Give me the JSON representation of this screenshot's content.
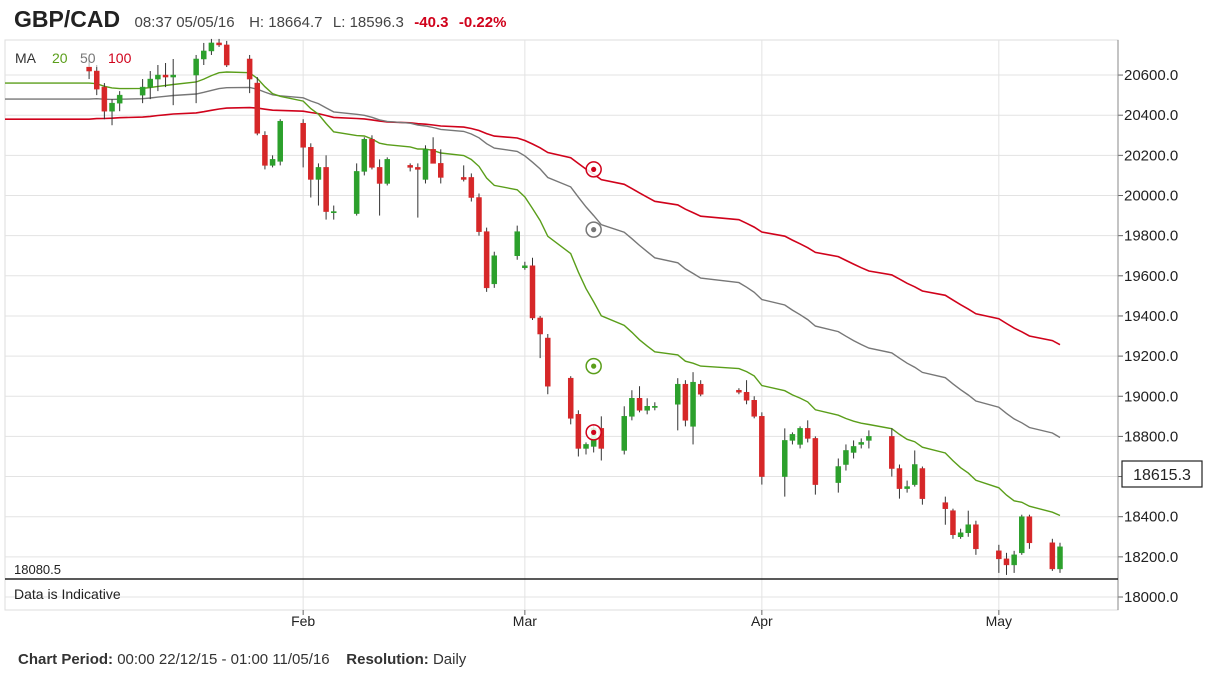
{
  "header": {
    "symbol": "GBP/CAD",
    "time": "08:37 05/05/16",
    "high": "H: 18664.7",
    "low": "L: 18596.3",
    "change": "-40.3",
    "change_pct": "-0.22%"
  },
  "legend": {
    "label": "MA",
    "ma20": "20",
    "ma50": "50",
    "ma100": "100"
  },
  "indicative_label": "Data is Indicative",
  "min_label": "18080.5",
  "current_price": "18615.3",
  "footer": {
    "period_label": "Chart Period:",
    "period_value": "00:00 22/12/15 - 01:00 11/05/16",
    "resolution_label": "Resolution:",
    "resolution_value": "Daily"
  },
  "colors": {
    "up": "#2ca02c",
    "down": "#d62728",
    "ma20": "#5a9e1a",
    "ma50": "#777777",
    "ma100": "#d0021b",
    "grid": "#e3e3e3"
  },
  "chart_data": {
    "type": "candlestick",
    "y_ticks": [
      18000,
      18200,
      18400,
      18600,
      18800,
      19000,
      19200,
      19400,
      19600,
      19800,
      20000,
      20200,
      20400,
      20600
    ],
    "y_tick_labels": [
      "18000.0",
      "18200.0",
      "18400.0",
      "18600.0",
      "18800.0",
      "19000.0",
      "19200.0",
      "19400.0",
      "19600.0",
      "19800.0",
      "20000.0",
      "20200.0",
      "20400.0",
      "20600.0"
    ],
    "ylim": [
      17900,
      20780
    ],
    "x_month_labels": [
      {
        "label": "Feb",
        "date": "2016-02-01"
      },
      {
        "label": "Mar",
        "date": "2016-03-01"
      },
      {
        "label": "Apr",
        "date": "2016-04-01"
      },
      {
        "label": "May",
        "date": "2016-05-02"
      }
    ],
    "x_range": [
      "2015-12-24",
      "2016-05-10"
    ],
    "candles": [
      {
        "d": "2016-01-04",
        "o": 20640,
        "h": 20680,
        "l": 20580,
        "c": 20620
      },
      {
        "d": "2016-01-05",
        "o": 20620,
        "h": 20650,
        "l": 20500,
        "c": 20530
      },
      {
        "d": "2016-01-06",
        "o": 20540,
        "h": 20560,
        "l": 20380,
        "c": 20420
      },
      {
        "d": "2016-01-07",
        "o": 20420,
        "h": 20480,
        "l": 20350,
        "c": 20460
      },
      {
        "d": "2016-01-08",
        "o": 20460,
        "h": 20520,
        "l": 20420,
        "c": 20500
      },
      {
        "d": "2016-01-11",
        "o": 20500,
        "h": 20580,
        "l": 20460,
        "c": 20540
      },
      {
        "d": "2016-01-12",
        "o": 20540,
        "h": 20620,
        "l": 20480,
        "c": 20580
      },
      {
        "d": "2016-01-13",
        "o": 20580,
        "h": 20650,
        "l": 20520,
        "c": 20600
      },
      {
        "d": "2016-01-14",
        "o": 20600,
        "h": 20660,
        "l": 20540,
        "c": 20590
      },
      {
        "d": "2016-01-15",
        "o": 20590,
        "h": 20680,
        "l": 20450,
        "c": 20600
      },
      {
        "d": "2016-01-18",
        "o": 20600,
        "h": 20700,
        "l": 20460,
        "c": 20680
      },
      {
        "d": "2016-01-19",
        "o": 20680,
        "h": 20760,
        "l": 20650,
        "c": 20720
      },
      {
        "d": "2016-01-20",
        "o": 20720,
        "h": 20780,
        "l": 20700,
        "c": 20760
      },
      {
        "d": "2016-01-21",
        "o": 20760,
        "h": 20780,
        "l": 20740,
        "c": 20750
      },
      {
        "d": "2016-01-22",
        "o": 20750,
        "h": 20770,
        "l": 20640,
        "c": 20650
      },
      {
        "d": "2016-01-25",
        "o": 20680,
        "h": 20700,
        "l": 20510,
        "c": 20580
      },
      {
        "d": "2016-01-26",
        "o": 20560,
        "h": 20590,
        "l": 20300,
        "c": 20310
      },
      {
        "d": "2016-01-27",
        "o": 20300,
        "h": 20320,
        "l": 20130,
        "c": 20150
      },
      {
        "d": "2016-01-28",
        "o": 20150,
        "h": 20200,
        "l": 20140,
        "c": 20180
      },
      {
        "d": "2016-01-29",
        "o": 20170,
        "h": 20380,
        "l": 20150,
        "c": 20370
      },
      {
        "d": "2016-02-01",
        "o": 20360,
        "h": 20380,
        "l": 20140,
        "c": 20240
      },
      {
        "d": "2016-02-02",
        "o": 20240,
        "h": 20260,
        "l": 19990,
        "c": 20080
      },
      {
        "d": "2016-02-03",
        "o": 20080,
        "h": 20160,
        "l": 19950,
        "c": 20140
      },
      {
        "d": "2016-02-04",
        "o": 20140,
        "h": 20200,
        "l": 19880,
        "c": 19920
      },
      {
        "d": "2016-02-05",
        "o": 19920,
        "h": 19950,
        "l": 19880,
        "c": 19920
      },
      {
        "d": "2016-02-08",
        "o": 19910,
        "h": 20160,
        "l": 19900,
        "c": 20120
      },
      {
        "d": "2016-02-09",
        "o": 20120,
        "h": 20290,
        "l": 20100,
        "c": 20280
      },
      {
        "d": "2016-02-10",
        "o": 20280,
        "h": 20300,
        "l": 20130,
        "c": 20140
      },
      {
        "d": "2016-02-11",
        "o": 20140,
        "h": 20180,
        "l": 19900,
        "c": 20060
      },
      {
        "d": "2016-02-12",
        "o": 20060,
        "h": 20190,
        "l": 20050,
        "c": 20180
      },
      {
        "d": "2016-02-15",
        "o": 20150,
        "h": 20160,
        "l": 20120,
        "c": 20140
      },
      {
        "d": "2016-02-16",
        "o": 20140,
        "h": 20160,
        "l": 19890,
        "c": 20130
      },
      {
        "d": "2016-02-17",
        "o": 20080,
        "h": 20250,
        "l": 20060,
        "c": 20230
      },
      {
        "d": "2016-02-18",
        "o": 20230,
        "h": 20290,
        "l": 20180,
        "c": 20160
      },
      {
        "d": "2016-02-19",
        "o": 20160,
        "h": 20230,
        "l": 20060,
        "c": 20090
      },
      {
        "d": "2016-02-22",
        "o": 20090,
        "h": 20150,
        "l": 20070,
        "c": 20080
      },
      {
        "d": "2016-02-23",
        "o": 20090,
        "h": 20110,
        "l": 19970,
        "c": 19990
      },
      {
        "d": "2016-02-24",
        "o": 19990,
        "h": 20010,
        "l": 19800,
        "c": 19820
      },
      {
        "d": "2016-02-25",
        "o": 19820,
        "h": 19840,
        "l": 19520,
        "c": 19540
      },
      {
        "d": "2016-02-26",
        "o": 19560,
        "h": 19720,
        "l": 19540,
        "c": 19700
      },
      {
        "d": "2016-02-29",
        "o": 19700,
        "h": 19850,
        "l": 19680,
        "c": 19820
      },
      {
        "d": "2016-03-01",
        "o": 19640,
        "h": 19670,
        "l": 19630,
        "c": 19650
      },
      {
        "d": "2016-03-02",
        "o": 19650,
        "h": 19690,
        "l": 19380,
        "c": 19390
      },
      {
        "d": "2016-03-03",
        "o": 19390,
        "h": 19400,
        "l": 19190,
        "c": 19310
      },
      {
        "d": "2016-03-04",
        "o": 19290,
        "h": 19310,
        "l": 19010,
        "c": 19050
      },
      {
        "d": "2016-03-07",
        "o": 19090,
        "h": 19100,
        "l": 18860,
        "c": 18890
      },
      {
        "d": "2016-03-08",
        "o": 18910,
        "h": 18930,
        "l": 18700,
        "c": 18740
      },
      {
        "d": "2016-03-09",
        "o": 18740,
        "h": 18770,
        "l": 18710,
        "c": 18760
      },
      {
        "d": "2016-03-10",
        "o": 18750,
        "h": 18860,
        "l": 18720,
        "c": 18840
      },
      {
        "d": "2016-03-11",
        "o": 18840,
        "h": 18900,
        "l": 18680,
        "c": 18740
      },
      {
        "d": "2016-03-14",
        "o": 18730,
        "h": 18950,
        "l": 18710,
        "c": 18900
      },
      {
        "d": "2016-03-15",
        "o": 18900,
        "h": 19030,
        "l": 18880,
        "c": 18990
      },
      {
        "d": "2016-03-16",
        "o": 18990,
        "h": 19050,
        "l": 18920,
        "c": 18930
      },
      {
        "d": "2016-03-17",
        "o": 18930,
        "h": 18990,
        "l": 18910,
        "c": 18950
      },
      {
        "d": "2016-03-18",
        "o": 18950,
        "h": 18970,
        "l": 18930,
        "c": 18950
      },
      {
        "d": "2016-03-21",
        "o": 18960,
        "h": 19090,
        "l": 18830,
        "c": 19060
      },
      {
        "d": "2016-03-22",
        "o": 19060,
        "h": 19080,
        "l": 18850,
        "c": 18880
      },
      {
        "d": "2016-03-23",
        "o": 18850,
        "h": 19120,
        "l": 18760,
        "c": 19070
      },
      {
        "d": "2016-03-24",
        "o": 19060,
        "h": 19080,
        "l": 19000,
        "c": 19010
      },
      {
        "d": "2016-03-29",
        "o": 19030,
        "h": 19040,
        "l": 19010,
        "c": 19020
      },
      {
        "d": "2016-03-30",
        "o": 19020,
        "h": 19080,
        "l": 18960,
        "c": 18980
      },
      {
        "d": "2016-03-31",
        "o": 18980,
        "h": 19000,
        "l": 18890,
        "c": 18900
      },
      {
        "d": "2016-04-01",
        "o": 18900,
        "h": 18920,
        "l": 18560,
        "c": 18600
      },
      {
        "d": "2016-04-04",
        "o": 18600,
        "h": 18840,
        "l": 18500,
        "c": 18780
      },
      {
        "d": "2016-04-05",
        "o": 18780,
        "h": 18820,
        "l": 18760,
        "c": 18810
      },
      {
        "d": "2016-04-06",
        "o": 18760,
        "h": 18850,
        "l": 18740,
        "c": 18840
      },
      {
        "d": "2016-04-07",
        "o": 18840,
        "h": 18880,
        "l": 18770,
        "c": 18790
      },
      {
        "d": "2016-04-08",
        "o": 18790,
        "h": 18800,
        "l": 18510,
        "c": 18560
      },
      {
        "d": "2016-04-11",
        "o": 18570,
        "h": 18690,
        "l": 18520,
        "c": 18650
      },
      {
        "d": "2016-04-12",
        "o": 18660,
        "h": 18760,
        "l": 18630,
        "c": 18730
      },
      {
        "d": "2016-04-13",
        "o": 18720,
        "h": 18780,
        "l": 18690,
        "c": 18750
      },
      {
        "d": "2016-04-14",
        "o": 18760,
        "h": 18790,
        "l": 18740,
        "c": 18770
      },
      {
        "d": "2016-04-15",
        "o": 18780,
        "h": 18830,
        "l": 18740,
        "c": 18800
      },
      {
        "d": "2016-04-18",
        "o": 18800,
        "h": 18840,
        "l": 18600,
        "c": 18640
      },
      {
        "d": "2016-04-19",
        "o": 18640,
        "h": 18660,
        "l": 18490,
        "c": 18540
      },
      {
        "d": "2016-04-20",
        "o": 18540,
        "h": 18580,
        "l": 18520,
        "c": 18550
      },
      {
        "d": "2016-04-21",
        "o": 18560,
        "h": 18730,
        "l": 18550,
        "c": 18660
      },
      {
        "d": "2016-04-22",
        "o": 18640,
        "h": 18650,
        "l": 18460,
        "c": 18490
      },
      {
        "d": "2016-04-25",
        "o": 18470,
        "h": 18500,
        "l": 18360,
        "c": 18440
      },
      {
        "d": "2016-04-26",
        "o": 18430,
        "h": 18440,
        "l": 18290,
        "c": 18310
      },
      {
        "d": "2016-04-27",
        "o": 18300,
        "h": 18340,
        "l": 18290,
        "c": 18320
      },
      {
        "d": "2016-04-28",
        "o": 18320,
        "h": 18430,
        "l": 18300,
        "c": 18360
      },
      {
        "d": "2016-04-29",
        "o": 18360,
        "h": 18380,
        "l": 18210,
        "c": 18240
      },
      {
        "d": "2016-05-02",
        "o": 18230,
        "h": 18260,
        "l": 18120,
        "c": 18190
      },
      {
        "d": "2016-05-03",
        "o": 18190,
        "h": 18220,
        "l": 18110,
        "c": 18160
      },
      {
        "d": "2016-05-04",
        "o": 18160,
        "h": 18230,
        "l": 18120,
        "c": 18210
      },
      {
        "d": "2016-05-05",
        "o": 18220,
        "h": 18410,
        "l": 18210,
        "c": 18400
      },
      {
        "d": "2016-05-06",
        "o": 18400,
        "h": 18410,
        "l": 18240,
        "c": 18270
      },
      {
        "d": "2016-05-09",
        "o": 18270,
        "h": 18290,
        "l": 18130,
        "c": 18140
      },
      {
        "d": "2016-05-10",
        "o": 18140,
        "h": 18270,
        "l": 18120,
        "c": 18250
      }
    ]
  }
}
